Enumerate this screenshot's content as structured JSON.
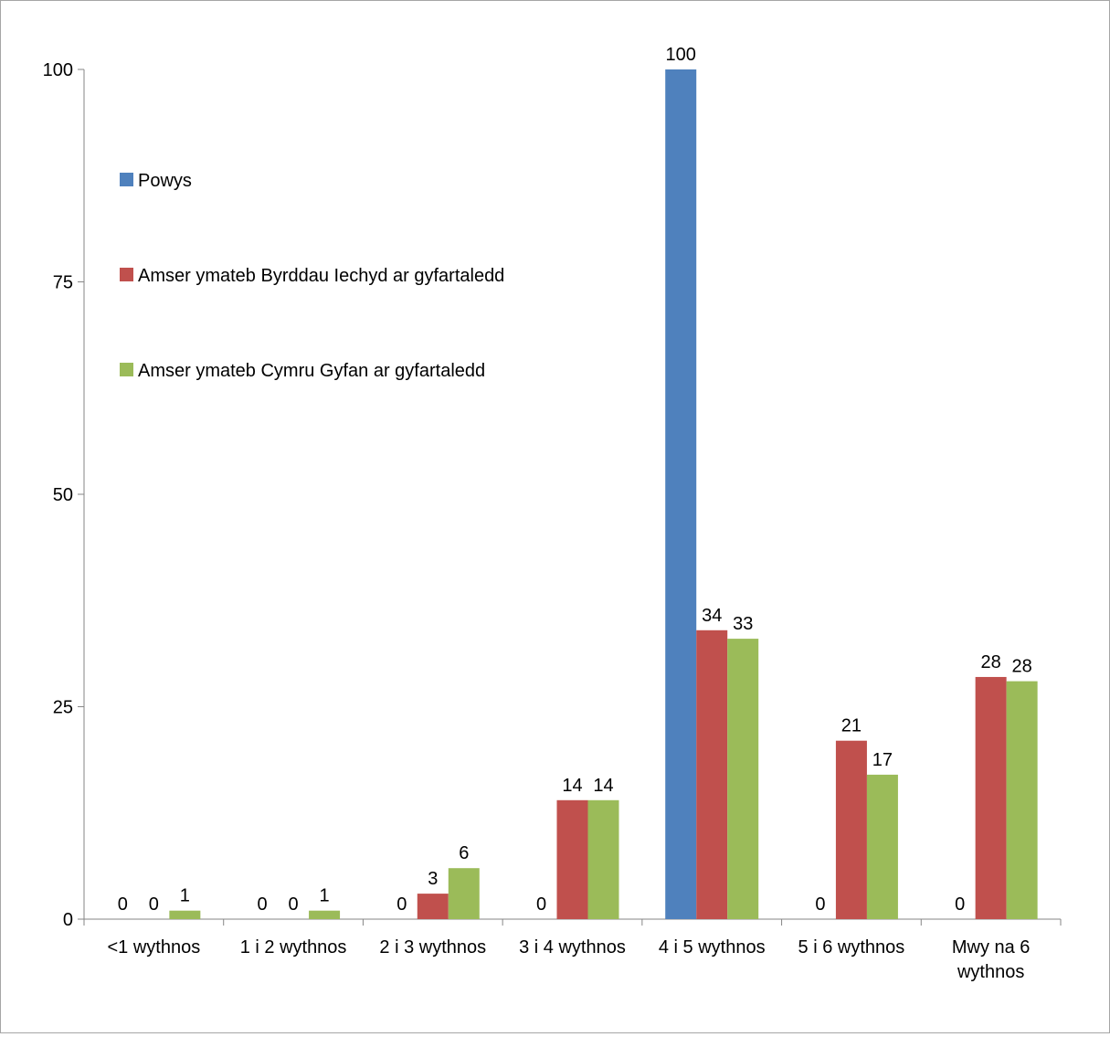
{
  "chart_data": {
    "type": "bar",
    "categories": [
      "<1 wythnos",
      "1 i 2 wythnos",
      "2 i 3 wythnos",
      "3 i 4 wythnos",
      "4 i 5 wythnos",
      "5 i 6 wythnos",
      "Mwy na 6 wythnos"
    ],
    "category_lines": [
      [
        "<1 wythnos"
      ],
      [
        "1 i 2 wythnos"
      ],
      [
        "2 i 3 wythnos"
      ],
      [
        "3 i 4 wythnos"
      ],
      [
        "4 i 5 wythnos"
      ],
      [
        "5 i 6 wythnos"
      ],
      [
        "Mwy na 6",
        "wythnos"
      ]
    ],
    "series": [
      {
        "name": "Powys",
        "color": "#4f81bd",
        "values": [
          0,
          0,
          0,
          0,
          100,
          0,
          0
        ],
        "labels": [
          "0",
          "0",
          "0",
          "0",
          "100",
          "0",
          "0"
        ]
      },
      {
        "name": "Amser ymateb Byrddau Iechyd ar gyfartaledd",
        "color": "#c0504d",
        "values": [
          0,
          0,
          3,
          14,
          34,
          21,
          28.5
        ],
        "labels": [
          "0",
          "0",
          "3",
          "14",
          "34",
          "21",
          "28"
        ]
      },
      {
        "name": "Amser ymateb Cymru Gyfan ar gyfartaledd",
        "color": "#9bbb59",
        "values": [
          1,
          1,
          6,
          14,
          33,
          17,
          28
        ],
        "labels": [
          "1",
          "1",
          "6",
          "14",
          "33",
          "17",
          "28"
        ]
      }
    ],
    "ylim": [
      0,
      100
    ],
    "yticks": [
      0,
      25,
      50,
      75,
      100
    ],
    "title": "",
    "xlabel": "",
    "ylabel": "",
    "grid": false,
    "legend_position": "top-left"
  }
}
